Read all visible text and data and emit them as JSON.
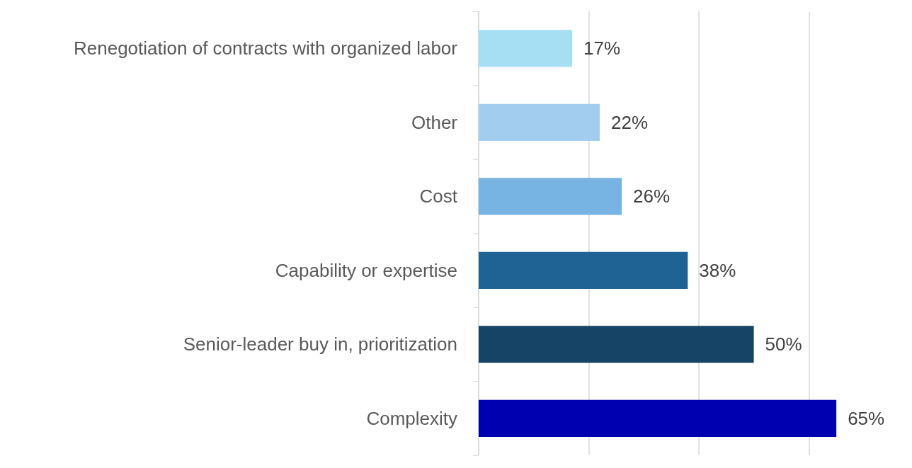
{
  "chart_data": {
    "type": "bar",
    "orientation": "horizontal",
    "categories": [
      "Renegotiation of contracts with organized labor",
      "Other",
      "Cost",
      "Capability or expertise",
      "Senior-leader buy in, prioritization",
      "Complexity"
    ],
    "values": [
      17,
      22,
      26,
      38,
      50,
      65
    ],
    "colors": [
      "#a6dff3",
      "#a3cdee",
      "#77b4e3",
      "#1f6395",
      "#164466",
      "#0000b0"
    ],
    "value_labels": [
      "17%",
      "22%",
      "26%",
      "38%",
      "50%",
      "65%"
    ],
    "xticks": [
      {
        "value": 0,
        "label": null
      },
      {
        "value": 20,
        "label": null
      },
      {
        "value": 40,
        "label": null
      },
      {
        "value": 60,
        "label": null
      }
    ],
    "grid": "x",
    "tick_labels": "y"
  }
}
